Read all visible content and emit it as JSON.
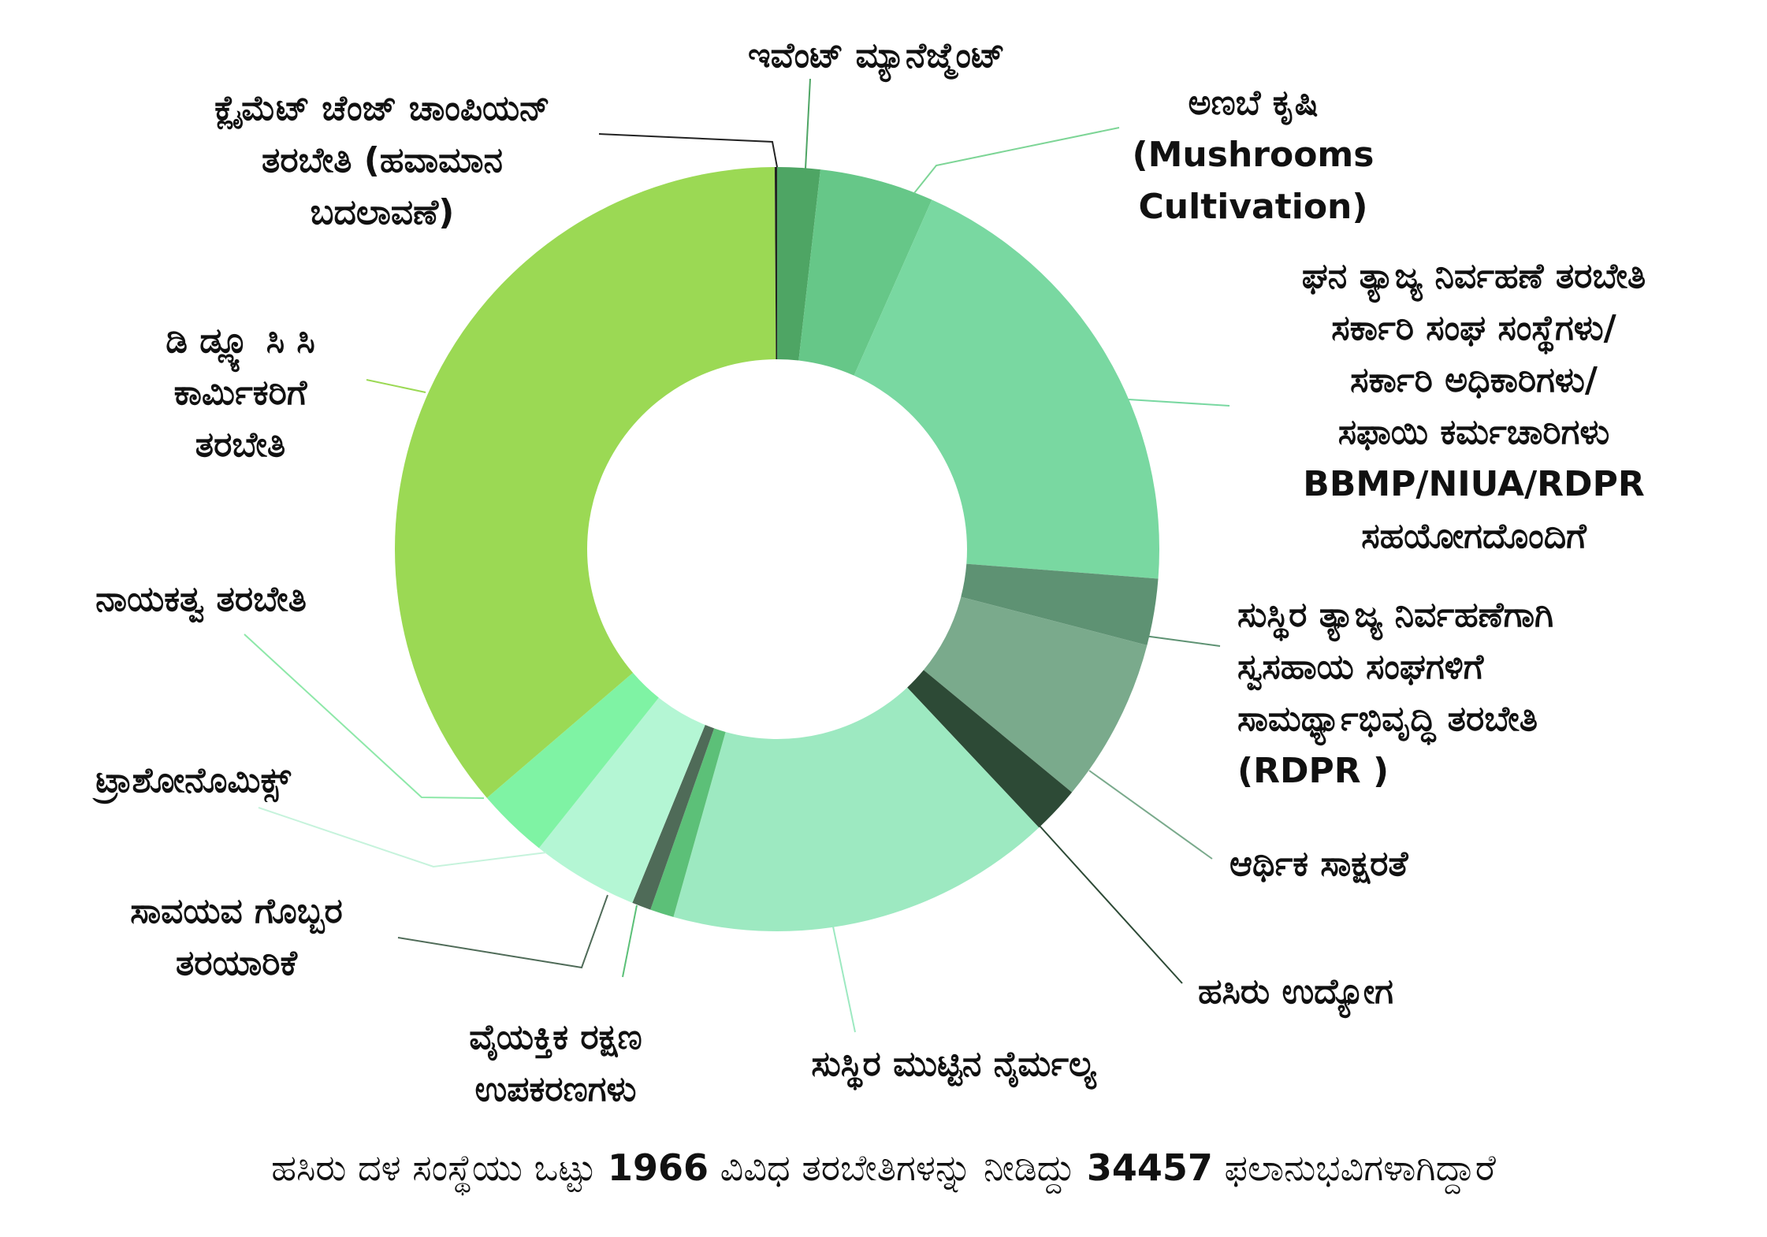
{
  "chart_data": {
    "type": "donut",
    "unit": "ಶೇ",
    "slices": [
      {
        "name": "ಇವೆಂಟ್ ಮ್ಯಾನೆಜ್ಮೆಂಟ್",
        "lines": [
          "ಇವೆಂಟ್ ಮ್ಯಾನೆಜ್ಮೆಂಟ್"
        ],
        "value": 1.8,
        "color": "#4ea564",
        "label_color": "#4ea564"
      },
      {
        "name": "ಅಣಬೆ ಕೃಷಿ (Mushrooms Cultivation)",
        "lines": [
          "ಅಣಬೆ ಕೃಷಿ",
          "(Mushrooms",
          "Cultivation)"
        ],
        "value": 4.8,
        "color": "#66c788",
        "label_color": "#7dd596"
      },
      {
        "name": "ಘನ ತ್ಯಾಜ್ಯ ನಿರ್ವಹಣೆ ತರಬೇತಿ ಸರ್ಕಾರಿ ಸಂಘ ಸಂಸ್ಥೆಗಳು/ ಸರ್ಕಾರಿ ಅಧಿಕಾರಿಗಳು/ ಸಫಾಯಿ ಕರ್ಮಚಾರಿಗಳು BBMP/NIUA/RDPR ಸಹಯೋಗದೊಂದಿಗೆ",
        "lines": [
          "ಘನ ತ್ಯಾಜ್ಯ ನಿರ್ವಹಣೆ ತರಬೇತಿ",
          "ಸರ್ಕಾರಿ ಸಂಘ ಸಂಸ್ಥೆಗಳು/",
          "ಸರ್ಕಾರಿ ಅಧಿಕಾರಿಗಳು/",
          "ಸಫಾಯಿ ಕರ್ಮಚಾರಿಗಳು",
          "BBMP/NIUA/RDPR",
          "ಸಹಯೋಗದೊಂದಿಗೆ"
        ],
        "value": 19.5,
        "color": "#79d8a1",
        "label_color": "#79d8a1"
      },
      {
        "name": "ಸುಸ್ಥಿರ ತ್ಯಾಜ್ಯ ನಿರ್ವಹಣೆಗಾಗಿ ಸ್ವಸಹಾಯ ಸಂಘಗಳಿಗೆ ಸಾಮರ್ಥ್ಯಾಭಿವೃದ್ಧಿ ತರಬೇತಿ (RDPR )",
        "lines": [
          "ಸುಸ್ಥಿರ ತ್ಯಾಜ್ಯ ನಿರ್ವಹಣೆಗಾಗಿ",
          "ಸ್ವಸಹಾಯ ಸಂಘಗಳಿಗೆ",
          "ಸಾಮರ್ಥ್ಯಾಭಿವೃದ್ಧಿ ತರಬೇತಿ",
          "(RDPR )"
        ],
        "value": 2.8,
        "color": "#5e9273",
        "label_color": "#5e9273"
      },
      {
        "name": "ಆರ್ಥಿಕ ಸಾಕ್ಷರತೆ",
        "lines": [
          "ಆರ್ಥಿಕ ಸಾಕ್ಷರತೆ"
        ],
        "value": 6.9,
        "color": "#7aaa8c",
        "label_color": "#7aaa8c"
      },
      {
        "name": "ಹಸಿರು ಉದ್ಯೋಗ",
        "lines": [
          "ಹಸಿರು ಉದ್ಯೋಗ"
        ],
        "value": 2.0,
        "color": "#2d4a36",
        "label_color": "#2d4a36"
      },
      {
        "name": "ಸುಸ್ಥಿರ ಮುಟ್ಟಿನ ನೈರ್ಮಲ್ಯ",
        "lines": [
          "ಸುಸ್ಥಿರ ಮುಟ್ಟಿನ ನೈರ್ಮಲ್ಯ"
        ],
        "value": 16.3,
        "color": "#9de9c1",
        "label_color": "#9de9c1"
      },
      {
        "name": "ವೈಯಕ್ತಿಕ ರಕ್ಷಣ ಉಪಕರಣಗಳು",
        "lines": [
          "ವೈಯಕ್ತಿಕ ರಕ್ಷಣ",
          "ಉಪಕರಣಗಳು"
        ],
        "value": 1.0,
        "color": "#5cc078",
        "label_color": "#5cc078"
      },
      {
        "name": "ಸಾವಯವ ಗೊಬ್ಬರ ತರಯಾರಿಕೆ",
        "lines": [
          "ಸಾವಯವ ಗೊಬ್ಬರ",
          "ತರಯಾರಿಕೆ"
        ],
        "value": 0.8,
        "color": "#4f6b58",
        "label_color": "#4f6b58"
      },
      {
        "name": "ಟ್ರಾಶೋನೊಮಿಕ್ಸ್",
        "lines": [
          "ಟ್ರಾಶೋನೊಮಿಕ್ಸ್"
        ],
        "value": 4.5,
        "color": "#b4f6d4",
        "label_color": "#c6f3dc"
      },
      {
        "name": "ನಾಯಕತ್ವ ತರಬೇತಿ",
        "lines": [
          "ನಾಯಕತ್ವ ತರಬೇತಿ"
        ],
        "value": 3.0,
        "color": "#7ff3a4",
        "label_color": "#8ee8a9"
      },
      {
        "name": "ಡಿ ಡ್ಲ್ಯೂ ಸಿ ಸಿ ಕಾರ್ಮಿಕರಿಗೆ ತರಬೇತಿ",
        "lines": [
          "ಡಿ ಡ್ಲ್ಯೂ ಸಿ ಸಿ",
          "ಕಾರ್ಮಿಕರಿಗೆ",
          "ತರಬೇತಿ"
        ],
        "value": 36.0,
        "color": "#9bd954",
        "label_color": "#9bd954"
      },
      {
        "name": "ಕ್ಲೈಮೆಟ್ ಚೆಂಜ್ ಚಾಂಪಿಯನ್ ತರಬೇತಿ (ಹವಾಮಾನ ಬದಲಾವಣೆ)",
        "lines": [
          "ಕ್ಲೈಮೆಟ್ ಚೆಂಜ್ ಚಾಂಪಿಯನ್",
          "ತರಬೇತಿ (ಹವಾಮಾನ",
          "ಬದಲಾವಣೆ)"
        ],
        "value": 0.1,
        "color": "#222222",
        "label_color": "#222222"
      }
    ]
  },
  "footer": {
    "prefix": "ಹಸಿರು ದಳ ಸಂಸ್ಥೆಯು ಒಟ್ಟು ",
    "trainings_count": "1966",
    "middle": " ವಿವಿಧ ತರಬೇತಿಗಳನ್ನು ನೀಡಿದ್ದು ",
    "beneficiaries_count": "34457",
    "suffix": " ಫಲಾನುಭವಿಗಳಾಗಿದ್ದಾರೆ"
  }
}
